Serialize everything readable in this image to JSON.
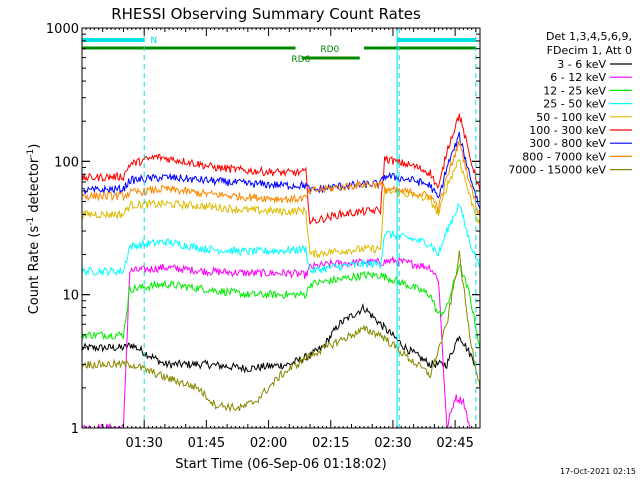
{
  "chart_data": {
    "type": "line",
    "title": "RHESSI Observing Summary Count Rates",
    "xlabel": "Start Time (06-Sep-06 01:18:02)",
    "ylabel_main": "Count Rate (s",
    "ylabel_sup1": "-1",
    "ylabel_mid": " detector",
    "ylabel_sup2": "-1",
    "ylabel_end": ")",
    "yscale": "log",
    "ylim": [
      1,
      1000
    ],
    "xlim_minutes": [
      0,
      96
    ],
    "x_tick_labels": [
      "01:30",
      "01:45",
      "02:00",
      "02:15",
      "02:30",
      "02:45"
    ],
    "x_tick_minutes": [
      15,
      30,
      45,
      60,
      75,
      90
    ],
    "y_tick_labels": [
      "1",
      "10",
      "100",
      "1000"
    ],
    "y_tick_values": [
      1,
      10,
      100,
      1000
    ],
    "legend_header": [
      "Det 1,3,4,5,6,9,",
      "FDecim 1, Att 0"
    ],
    "legend_placement": "right",
    "timestamp": "17-Oct-2021 02:15",
    "flags": [
      {
        "label": "N",
        "color": "#00e0e0"
      },
      {
        "label": "RD0",
        "color": "#008800"
      },
      {
        "label": "RD6",
        "color": "#008800"
      }
    ],
    "series": [
      {
        "name": "3 - 6 keV",
        "color": "#000000",
        "points": [
          [
            0,
            4
          ],
          [
            10,
            4
          ],
          [
            12,
            4.2
          ],
          [
            20,
            3
          ],
          [
            30,
            3
          ],
          [
            40,
            2.8
          ],
          [
            50,
            3
          ],
          [
            55,
            3.5
          ],
          [
            58,
            4
          ],
          [
            62,
            6
          ],
          [
            68,
            8
          ],
          [
            72,
            6
          ],
          [
            78,
            4
          ],
          [
            84,
            3
          ],
          [
            88,
            3
          ],
          [
            91,
            5
          ],
          [
            95,
            3
          ]
        ]
      },
      {
        "name": "6 - 12 keV",
        "color": "#ff00ff",
        "points": [
          [
            0,
            1
          ],
          [
            10,
            1
          ],
          [
            11.5,
            15
          ],
          [
            20,
            16
          ],
          [
            30,
            15
          ],
          [
            40,
            14.5
          ],
          [
            50,
            14.5
          ],
          [
            54,
            14
          ],
          [
            55,
            16
          ],
          [
            60,
            17
          ],
          [
            68,
            17.5
          ],
          [
            72,
            17.5
          ],
          [
            75,
            18
          ],
          [
            80,
            17
          ],
          [
            84,
            16
          ],
          [
            86,
            13
          ],
          [
            88,
            1
          ],
          [
            90,
            1.7
          ],
          [
            92,
            1.6
          ],
          [
            93.5,
            1
          ]
        ]
      },
      {
        "name": "12 - 25 keV",
        "color": "#00ee00",
        "points": [
          [
            0,
            5
          ],
          [
            10,
            5
          ],
          [
            11.5,
            11
          ],
          [
            20,
            12
          ],
          [
            30,
            11
          ],
          [
            40,
            10
          ],
          [
            50,
            10
          ],
          [
            54,
            10
          ],
          [
            55,
            12
          ],
          [
            62,
            13
          ],
          [
            68,
            14
          ],
          [
            72,
            14
          ],
          [
            78,
            12
          ],
          [
            84,
            10
          ],
          [
            86,
            7
          ],
          [
            88,
            8
          ],
          [
            91,
            17
          ],
          [
            93.5,
            10
          ],
          [
            96,
            4
          ]
        ]
      },
      {
        "name": "25 - 50 keV",
        "color": "#00ffff",
        "points": [
          [
            0,
            15
          ],
          [
            10,
            15
          ],
          [
            11.5,
            23
          ],
          [
            20,
            25
          ],
          [
            30,
            22
          ],
          [
            40,
            21
          ],
          [
            50,
            21.5
          ],
          [
            54,
            22
          ],
          [
            55,
            15
          ],
          [
            60,
            16
          ],
          [
            68,
            17
          ],
          [
            72,
            17
          ],
          [
            73,
            29
          ],
          [
            80,
            26
          ],
          [
            84,
            24
          ],
          [
            86,
            20
          ],
          [
            88,
            30
          ],
          [
            91,
            48
          ],
          [
            93.5,
            25
          ],
          [
            96,
            16
          ]
        ]
      },
      {
        "name": "50 - 100 keV",
        "color": "#ddbb00",
        "points": [
          [
            0,
            40
          ],
          [
            10,
            40
          ],
          [
            11.5,
            47
          ],
          [
            20,
            48
          ],
          [
            30,
            46
          ],
          [
            40,
            43
          ],
          [
            50,
            42
          ],
          [
            54,
            43
          ],
          [
            55,
            20
          ],
          [
            60,
            21
          ],
          [
            68,
            22
          ],
          [
            72,
            22
          ],
          [
            73,
            60
          ],
          [
            80,
            56
          ],
          [
            84,
            52
          ],
          [
            86,
            40
          ],
          [
            88,
            65
          ],
          [
            91,
            105
          ],
          [
            93.5,
            55
          ],
          [
            96,
            33
          ]
        ]
      },
      {
        "name": "100 - 300 keV",
        "color": "#ff0000",
        "points": [
          [
            0,
            75
          ],
          [
            10,
            77
          ],
          [
            11.5,
            95
          ],
          [
            18,
            108
          ],
          [
            25,
            100
          ],
          [
            32,
            90
          ],
          [
            40,
            85
          ],
          [
            50,
            82
          ],
          [
            54,
            83
          ],
          [
            55,
            35
          ],
          [
            62,
            40
          ],
          [
            68,
            42
          ],
          [
            72,
            43
          ],
          [
            73,
            105
          ],
          [
            80,
            92
          ],
          [
            84,
            82
          ],
          [
            86,
            62
          ],
          [
            88,
            120
          ],
          [
            91,
            225
          ],
          [
            93.5,
            110
          ],
          [
            96,
            60
          ]
        ]
      },
      {
        "name": "300 - 800 keV",
        "color": "#0000ff",
        "points": [
          [
            0,
            60
          ],
          [
            10,
            62
          ],
          [
            11.5,
            72
          ],
          [
            20,
            76
          ],
          [
            30,
            72
          ],
          [
            40,
            68
          ],
          [
            50,
            66
          ],
          [
            54,
            66
          ],
          [
            55,
            60
          ],
          [
            62,
            65
          ],
          [
            68,
            67
          ],
          [
            72,
            68
          ],
          [
            73,
            78
          ],
          [
            80,
            72
          ],
          [
            84,
            66
          ],
          [
            86,
            52
          ],
          [
            88,
            90
          ],
          [
            91,
            155
          ],
          [
            93.5,
            80
          ],
          [
            96,
            44
          ]
        ]
      },
      {
        "name": "800 - 7000 keV",
        "color": "#ff8800",
        "points": [
          [
            0,
            55
          ],
          [
            10,
            55
          ],
          [
            11.5,
            58
          ],
          [
            20,
            62
          ],
          [
            30,
            57
          ],
          [
            40,
            54
          ],
          [
            50,
            52
          ],
          [
            54,
            53
          ],
          [
            55,
            60
          ],
          [
            62,
            64
          ],
          [
            68,
            67
          ],
          [
            72,
            67
          ],
          [
            73,
            62
          ],
          [
            80,
            58
          ],
          [
            84,
            55
          ],
          [
            86,
            45
          ],
          [
            88,
            75
          ],
          [
            91,
            140
          ],
          [
            93.5,
            70
          ],
          [
            96,
            38
          ]
        ]
      },
      {
        "name": "7000 - 15000 keV",
        "color": "#888800",
        "points": [
          [
            0,
            3
          ],
          [
            10,
            3
          ],
          [
            12,
            3
          ],
          [
            20,
            2.4
          ],
          [
            28,
            2
          ],
          [
            32,
            1.5
          ],
          [
            38,
            1.4
          ],
          [
            42,
            1.6
          ],
          [
            48,
            2.5
          ],
          [
            55,
            3.5
          ],
          [
            62,
            4.5
          ],
          [
            68,
            5.5
          ],
          [
            72,
            5
          ],
          [
            78,
            3.5
          ],
          [
            84,
            2.5
          ],
          [
            88,
            6
          ],
          [
            91,
            20
          ],
          [
            93.5,
            5
          ],
          [
            96,
            2
          ]
        ]
      }
    ]
  }
}
